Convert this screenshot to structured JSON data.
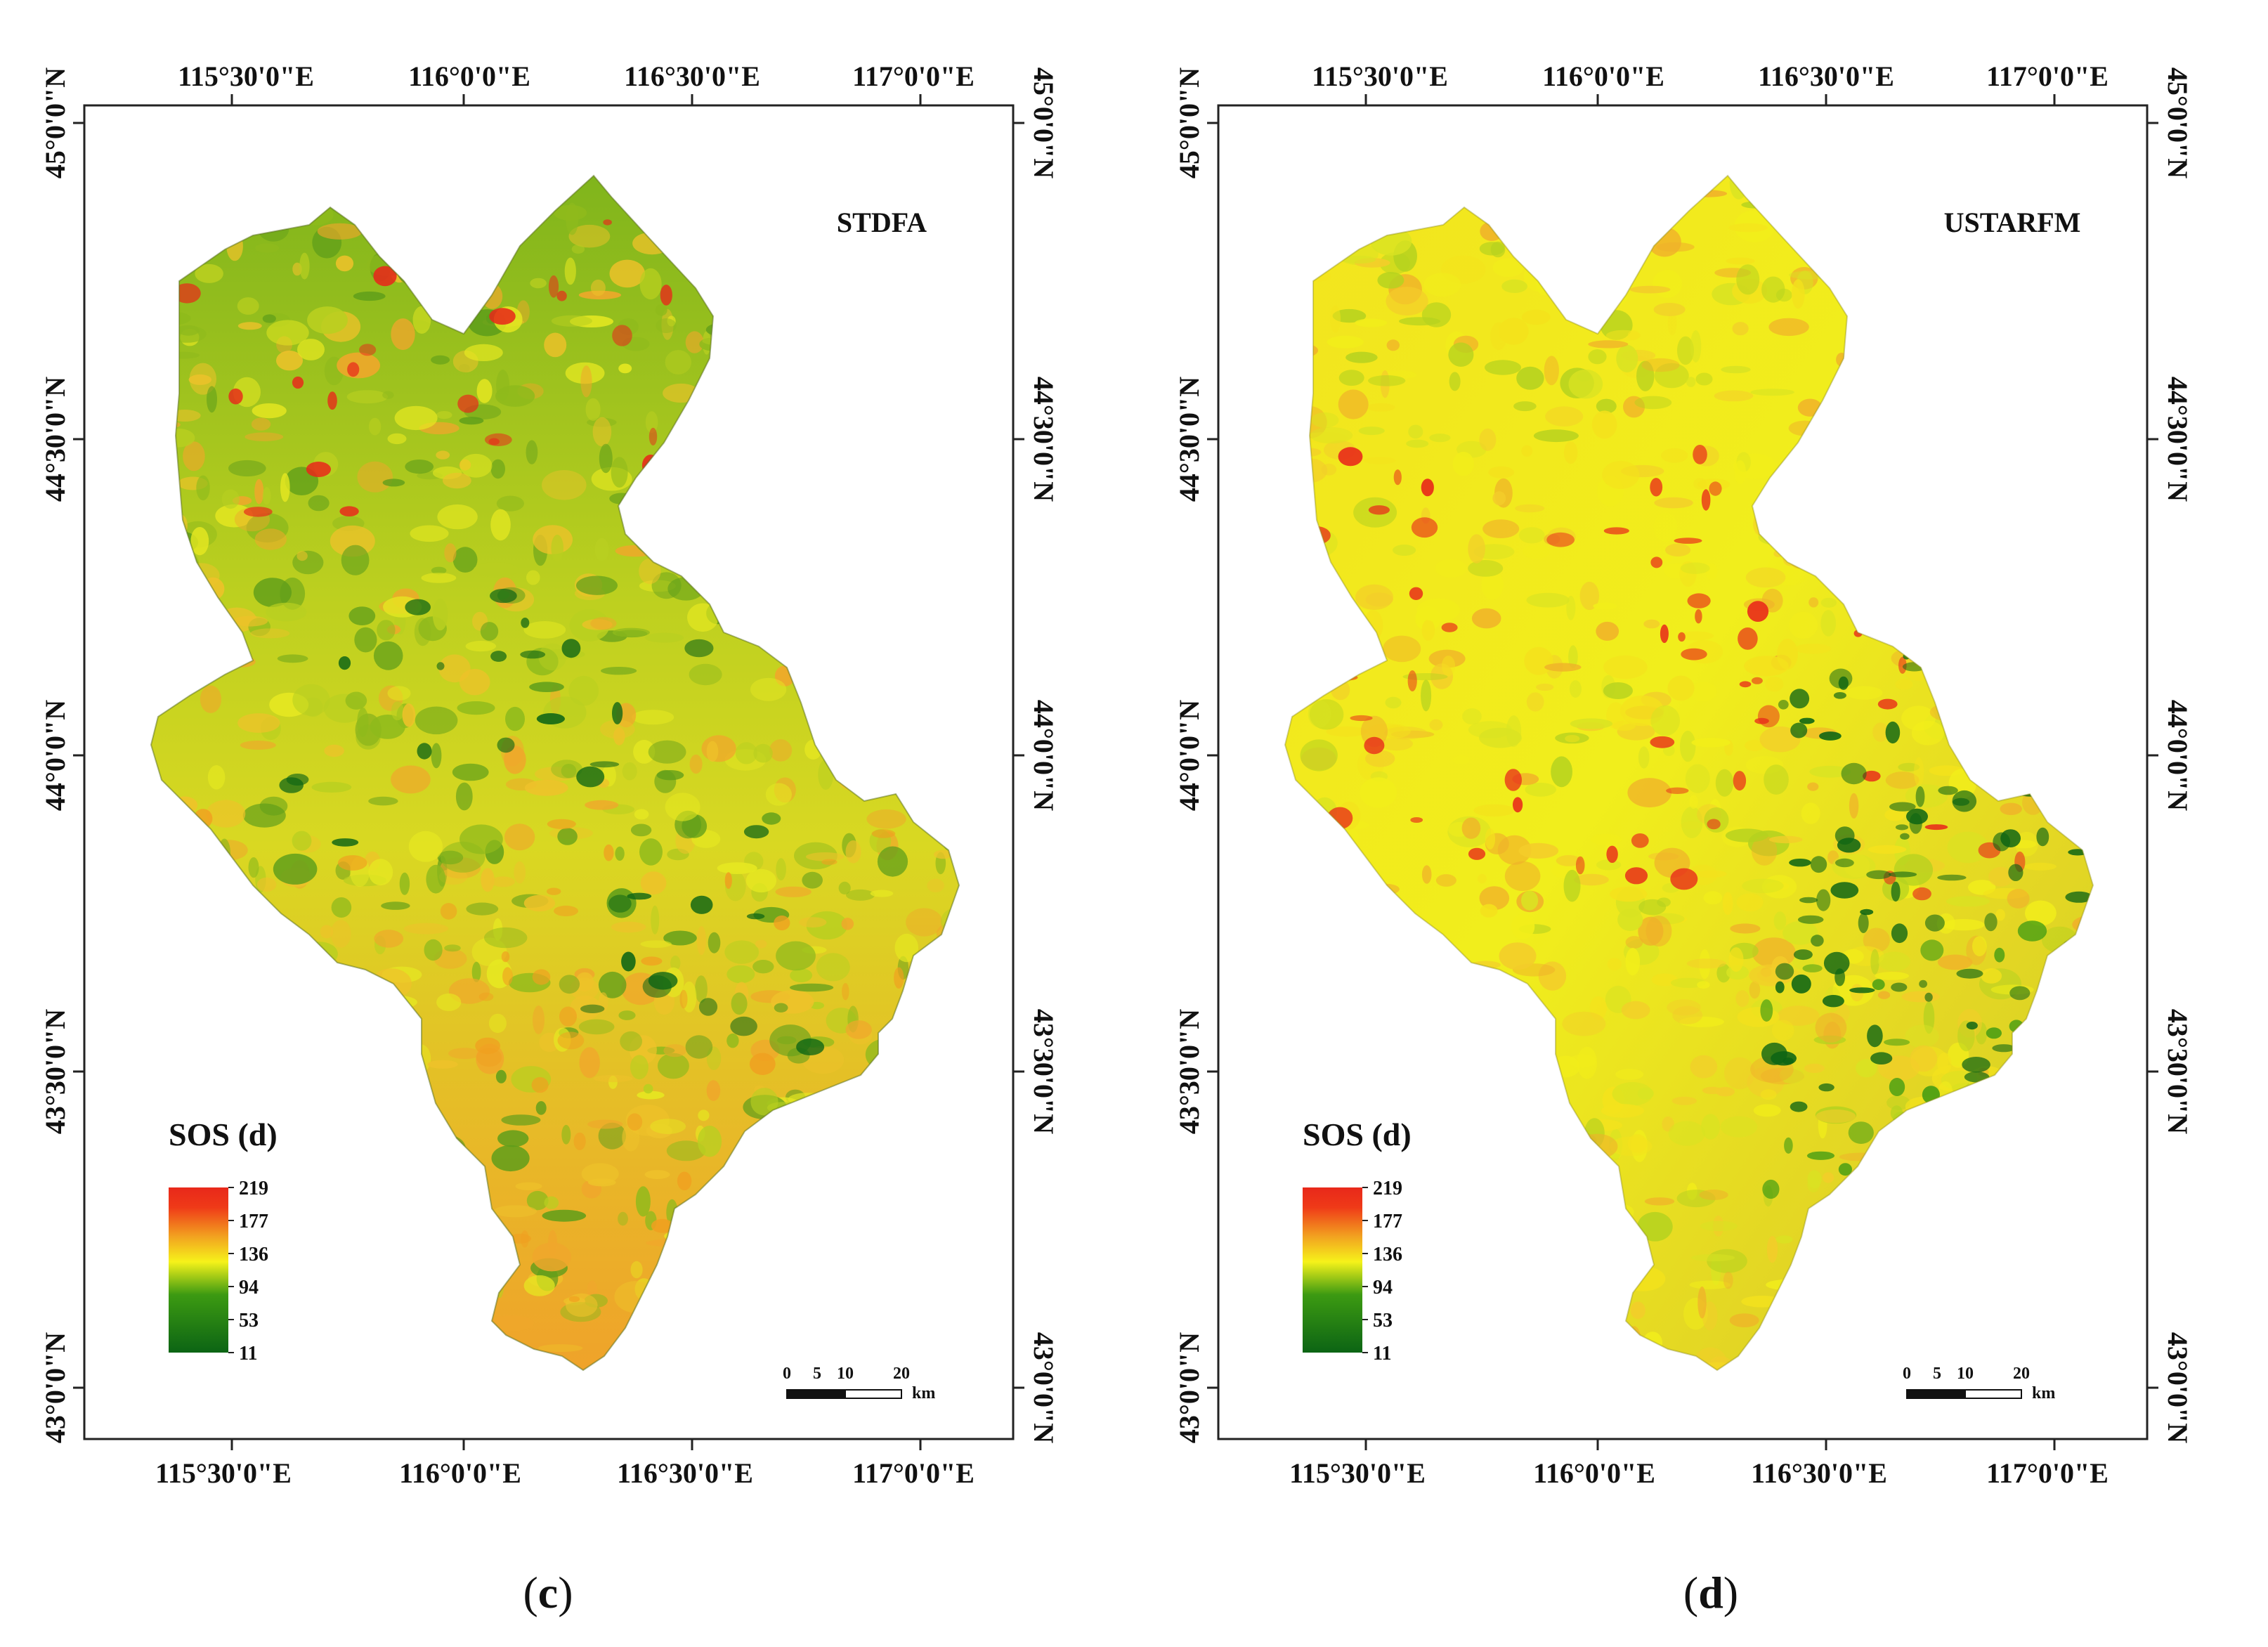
{
  "figure": {
    "colors": {
      "frame": "#222222",
      "sos_high": "#e8281a",
      "sos_orange": "#f0a020",
      "sos_yellow": "#f5f019",
      "sos_green": "#3c9a12",
      "sos_low": "#0c6414"
    },
    "panels": [
      {
        "id": "c",
        "caption_open": "(",
        "caption_letter": "c",
        "caption_close": ")",
        "map_title": "STDFA",
        "lon_labels": [
          "115°30'0\"E",
          "116°0'0\"E",
          "116°30'0\"E",
          "117°0'0\"E"
        ],
        "lat_labels": [
          "45°0'0\"N",
          "44°30'0\"N",
          "44°0'0\"N",
          "43°30'0\"N",
          "43°0'0\"N"
        ],
        "legend": {
          "title": "SOS (d)",
          "ticks": [
            "219",
            "177",
            "136",
            "94",
            "53",
            "11"
          ]
        },
        "scale_bar": {
          "ticks": [
            "0",
            "5",
            "10",
            "20"
          ],
          "unit": "km"
        },
        "dominant_palette": [
          "#8fba1c",
          "#b9cf20",
          "#e6e821",
          "#eec22a",
          "#f0a72b",
          "#5f9e1a"
        ]
      },
      {
        "id": "d",
        "caption_open": "(",
        "caption_letter": "d",
        "caption_close": ")",
        "map_title": "USTARFM",
        "lon_labels": [
          "115°30'0\"E",
          "116°0'0\"E",
          "116°30'0\"E",
          "117°0'0\"E"
        ],
        "lat_labels": [
          "45°0'0\"N",
          "44°30'0\"N",
          "44°0'0\"N",
          "43°30'0\"N",
          "43°0'0\"N"
        ],
        "legend": {
          "title": "SOS (d)",
          "ticks": [
            "219",
            "177",
            "136",
            "94",
            "53",
            "11"
          ]
        },
        "scale_bar": {
          "ticks": [
            "0",
            "5",
            "10",
            "20"
          ],
          "unit": "km"
        },
        "dominant_palette": [
          "#f2ee1a",
          "#f4e21c",
          "#f3cd2a",
          "#d9e322",
          "#f0b02a",
          "#b5d21f"
        ]
      }
    ]
  }
}
